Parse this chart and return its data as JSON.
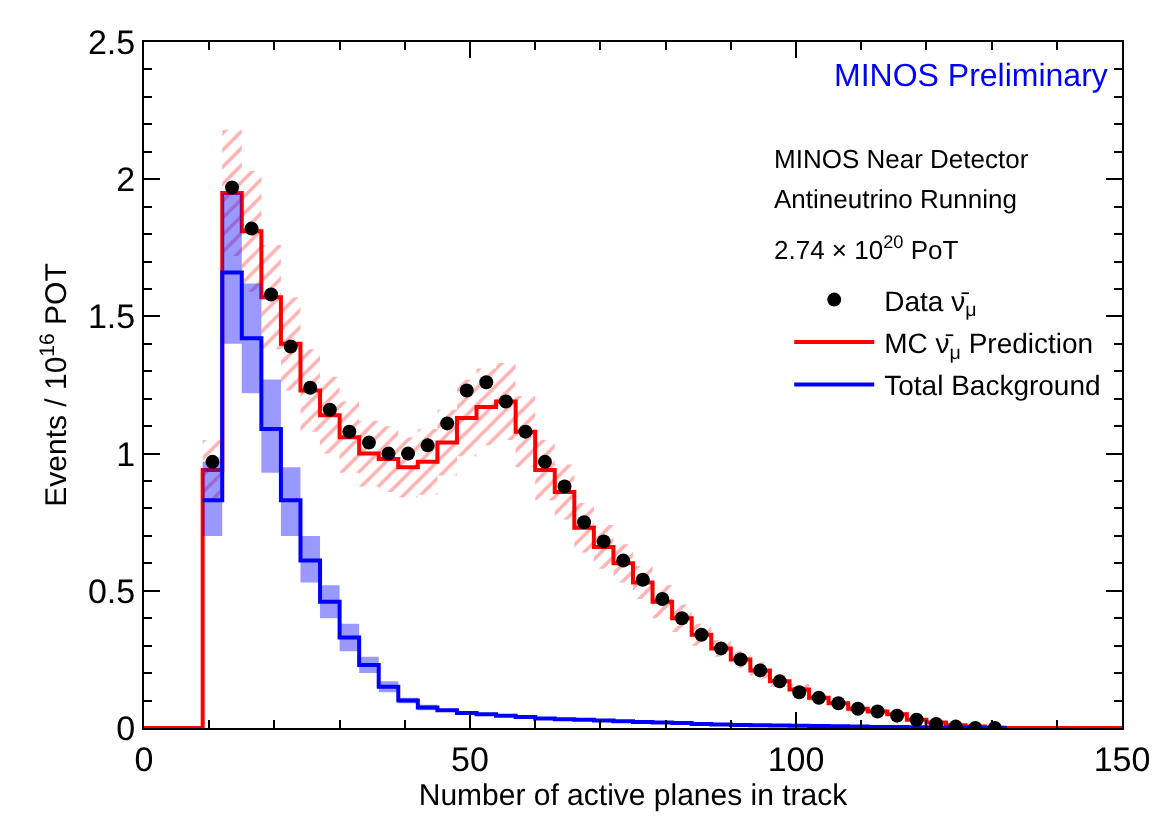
{
  "chart_data": {
    "type": "step",
    "xlabel": "Number of active planes in track",
    "ylabel": "Events / 10$^{16}$ POT",
    "annotations": [
      "MINOS Preliminary",
      "MINOS Near Detector",
      "Antineutrino Running",
      "2.74 × 10$^{20}$ PoT"
    ],
    "xlim": [
      0,
      150
    ],
    "xticks": [
      0,
      50,
      100,
      150
    ],
    "ylim": [
      0,
      2.5
    ],
    "yticks": [
      0,
      0.5,
      1,
      1.5,
      2,
      2.5
    ],
    "legend": "top right",
    "line_style": "solid",
    "series": [
      {
        "name": "MC ν̄$_{μ}$ Prediction",
        "color": "#ff0000",
        "x": [
          0,
          3,
          6,
          9,
          12,
          15,
          18,
          21,
          24,
          27,
          30,
          33,
          36,
          39,
          42,
          45,
          48,
          51,
          54,
          57,
          60,
          63,
          66,
          69,
          72,
          75,
          78,
          81,
          84,
          87,
          90,
          93,
          96,
          99,
          102,
          105,
          108,
          111,
          114,
          117,
          120,
          123,
          126,
          129,
          132,
          135,
          138,
          141,
          144,
          147,
          150
        ],
        "values": [
          0,
          0,
          0,
          0.94,
          1.95,
          1.81,
          1.57,
          1.4,
          1.23,
          1.14,
          1.06,
          1.0,
          0.98,
          0.95,
          0.97,
          1.04,
          1.13,
          1.17,
          1.19,
          1.08,
          0.94,
          0.86,
          0.73,
          0.66,
          0.6,
          0.53,
          0.46,
          0.4,
          0.34,
          0.29,
          0.25,
          0.21,
          0.17,
          0.14,
          0.11,
          0.09,
          0.07,
          0.06,
          0.05,
          0.03,
          0.02,
          0.01,
          0.005,
          0,
          0,
          0,
          0,
          0,
          0,
          0,
          0
        ],
        "lower": [
          0,
          0,
          0,
          0.83,
          1.72,
          1.59,
          1.38,
          1.23,
          1.08,
          1.0,
          0.93,
          0.88,
          0.86,
          0.84,
          0.85,
          0.92,
          0.99,
          1.03,
          1.05,
          0.95,
          0.83,
          0.76,
          0.64,
          0.58,
          0.53,
          0.47,
          0.4,
          0.35,
          0.3,
          0.26,
          0.22,
          0.18,
          0.15,
          0.12,
          0.1,
          0.08,
          0.06,
          0.05,
          0.04,
          0.03,
          0.02,
          0.01,
          0.004,
          0,
          0,
          0,
          0,
          0,
          0,
          0,
          0
        ],
        "upper": [
          0,
          0,
          0,
          1.05,
          2.18,
          2.03,
          1.76,
          1.57,
          1.38,
          1.28,
          1.19,
          1.12,
          1.1,
          1.06,
          1.09,
          1.16,
          1.27,
          1.31,
          1.33,
          1.21,
          1.05,
          0.96,
          0.82,
          0.74,
          0.67,
          0.59,
          0.52,
          0.45,
          0.38,
          0.32,
          0.28,
          0.24,
          0.19,
          0.16,
          0.12,
          0.1,
          0.08,
          0.07,
          0.06,
          0.03,
          0.02,
          0.01,
          0.006,
          0,
          0,
          0,
          0,
          0,
          0,
          0,
          0
        ]
      },
      {
        "name": "Total Background",
        "color": "#0000ff",
        "x": [
          9,
          12,
          15,
          18,
          21,
          24,
          27,
          30,
          33,
          36,
          39,
          42,
          45,
          48,
          51,
          54,
          57,
          60,
          63,
          66,
          69,
          72,
          75,
          78,
          81,
          84,
          87,
          90,
          93,
          96,
          99,
          102,
          105,
          108,
          111,
          114,
          117,
          120,
          123,
          126,
          129,
          132
        ],
        "values": [
          0.83,
          1.66,
          1.42,
          1.09,
          0.83,
          0.61,
          0.46,
          0.33,
          0.23,
          0.15,
          0.1,
          0.075,
          0.065,
          0.055,
          0.05,
          0.045,
          0.04,
          0.035,
          0.032,
          0.03,
          0.027,
          0.025,
          0.022,
          0.02,
          0.018,
          0.015,
          0.013,
          0.011,
          0.01,
          0.009,
          0.008,
          0.007,
          0.006,
          0.005,
          0.004,
          0.004,
          0.003,
          0.002,
          0.002,
          0.001,
          0.001,
          0
        ],
        "lower": [
          0.7,
          1.4,
          1.22,
          0.93,
          0.7,
          0.53,
          0.4,
          0.28,
          0.2,
          0.13,
          0.09,
          0.065,
          0.065,
          0.055,
          0.05,
          0.045,
          0.04,
          0.035,
          0.032,
          0.03,
          0.027,
          0.025,
          0.022,
          0.02,
          0.018,
          0.015,
          0.013,
          0.011,
          0.01,
          0.009,
          0.008,
          0.007,
          0.006,
          0.005,
          0.004,
          0.004,
          0.003,
          0.002,
          0.002,
          0.001,
          0.001,
          0
        ],
        "upper": [
          0.97,
          1.95,
          1.62,
          1.27,
          0.95,
          0.7,
          0.52,
          0.38,
          0.26,
          0.17,
          0.11,
          0.085,
          0.065,
          0.055,
          0.05,
          0.045,
          0.04,
          0.035,
          0.032,
          0.03,
          0.027,
          0.025,
          0.022,
          0.02,
          0.018,
          0.015,
          0.013,
          0.011,
          0.01,
          0.009,
          0.008,
          0.007,
          0.006,
          0.005,
          0.004,
          0.004,
          0.003,
          0.002,
          0.002,
          0.001,
          0.001,
          0
        ]
      },
      {
        "name": "Data ν̄$_{μ}$",
        "type": "scatter",
        "color": "#000000",
        "marker": "circle",
        "x": [
          10.5,
          13.5,
          16.5,
          19.5,
          22.5,
          25.5,
          28.5,
          31.5,
          34.5,
          37.5,
          40.5,
          43.5,
          46.5,
          49.5,
          52.5,
          55.5,
          58.5,
          61.5,
          64.5,
          67.5,
          70.5,
          73.5,
          76.5,
          79.5,
          82.5,
          85.5,
          88.5,
          91.5,
          94.5,
          97.5,
          100.5,
          103.5,
          106.5,
          109.5,
          112.5,
          115.5,
          118.5,
          121.5,
          124.5,
          127.5,
          130.5
        ],
        "values": [
          0.97,
          1.97,
          1.82,
          1.58,
          1.39,
          1.24,
          1.16,
          1.08,
          1.04,
          1.0,
          1.0,
          1.03,
          1.11,
          1.23,
          1.26,
          1.19,
          1.08,
          0.97,
          0.88,
          0.75,
          0.68,
          0.61,
          0.54,
          0.47,
          0.4,
          0.34,
          0.29,
          0.25,
          0.21,
          0.17,
          0.13,
          0.11,
          0.09,
          0.07,
          0.06,
          0.045,
          0.03,
          0.015,
          0.005,
          0,
          0
        ]
      }
    ]
  }
}
